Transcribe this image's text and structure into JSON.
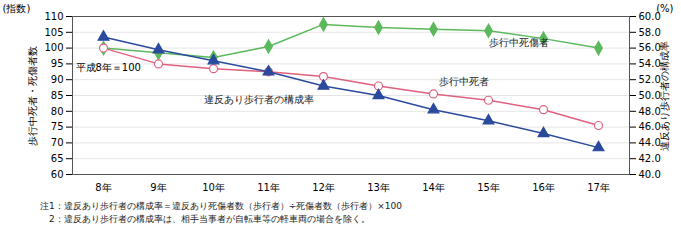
{
  "chart_data": {
    "type": "line",
    "categories": [
      "8年",
      "9年",
      "10年",
      "11年",
      "12年",
      "13年",
      "14年",
      "15年",
      "16年",
      "17年"
    ],
    "series": [
      {
        "name": "歩行中死傷者",
        "color": "#5cb85c",
        "marker": "diamond",
        "values": [
          100,
          98.5,
          97,
          100.5,
          107.5,
          106.5,
          106,
          105.5,
          103,
          100
        ]
      },
      {
        "name": "歩行中死者",
        "color": "#e0607e",
        "marker": "circle",
        "values": [
          100,
          95,
          93.5,
          92.5,
          91,
          88,
          85.5,
          83.5,
          80.5,
          75.5
        ]
      },
      {
        "name": "違反あり歩行者の構成率",
        "color": "#2a4a9c",
        "marker": "triangle",
        "axis": "y2",
        "values": [
          57.4,
          55.8,
          54.4,
          53.0,
          51.2,
          50.0,
          48.2,
          46.8,
          45.2,
          43.4
        ]
      }
    ],
    "ylabel": "歩行中死者・死傷者数",
    "y2label": "違反あり歩行者の構成率",
    "ylim": [
      60,
      110
    ],
    "yticks": [
      60,
      65,
      70,
      75,
      80,
      85,
      90,
      95,
      100,
      105,
      110
    ],
    "y2lim": [
      40,
      60
    ],
    "y2ticks": [
      {
        "value": 40,
        "label": "40.0"
      },
      {
        "value": 42,
        "label": "42.0"
      },
      {
        "value": 44,
        "label": "44.0"
      },
      {
        "value": 46,
        "label": "46.0"
      },
      {
        "value": 48,
        "label": "48.0"
      },
      {
        "value": 50,
        "label": "50.0"
      },
      {
        "value": 52,
        "label": "52.0"
      },
      {
        "value": 54,
        "label": "54.0"
      },
      {
        "value": 56,
        "label": "56.0"
      },
      {
        "value": 58,
        "label": "58.0"
      },
      {
        "value": 60,
        "label": "60.0"
      }
    ],
    "grid": true,
    "annotations": [
      "(指数)",
      "(%)",
      "平成8年＝100"
    ],
    "notes": [
      "注1：違反あり歩行者の構成率＝違反あり死傷者数（歩行者）÷死傷者数（歩行者）×100",
      "　2：違反あり歩行者の構成率は、相手当事者が自転車等の軽車両の場合を除く。"
    ]
  }
}
